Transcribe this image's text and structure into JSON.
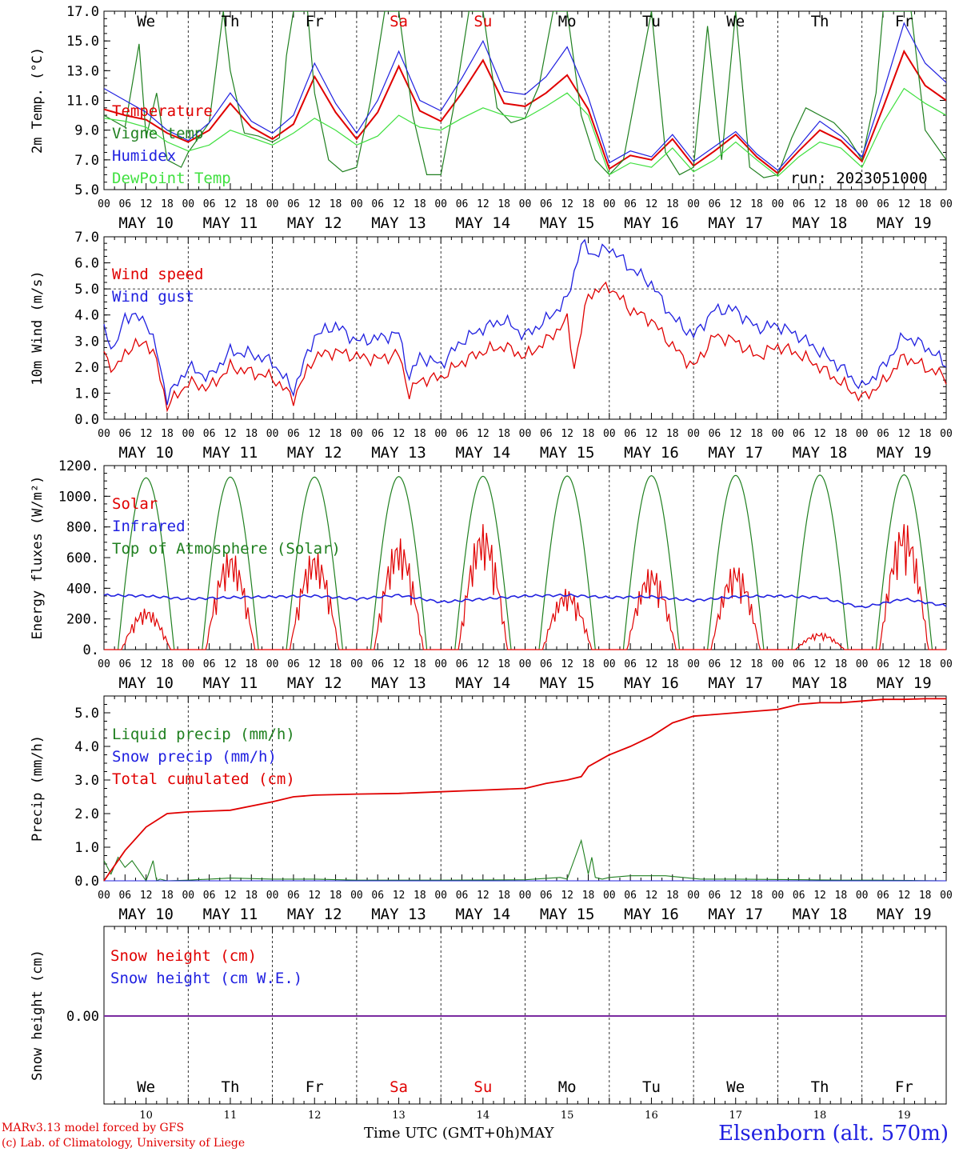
{
  "footer": {
    "model": "MARv3.13 model forced by GFS",
    "lab": "(c) Lab. of Climatology, University of Liege",
    "time_label": "Time UTC (GMT+0h)",
    "month": "MAY",
    "station": "Elsenborn (alt. 570m)"
  },
  "days": {
    "weekdays": [
      "We",
      "Th",
      "Fr",
      "Sa",
      "Su",
      "Mo",
      "Tu",
      "We",
      "Th",
      "Fr"
    ],
    "weekday_colors": [
      "#000000",
      "#000000",
      "#000000",
      "#e00000",
      "#e00000",
      "#000000",
      "#000000",
      "#000000",
      "#000000",
      "#000000"
    ],
    "dates": [
      "MAY 10",
      "MAY 11",
      "MAY 12",
      "MAY 13",
      "MAY 14",
      "MAY 15",
      "MAY 16",
      "MAY 17",
      "MAY 18",
      "MAY 19"
    ],
    "day_numbers": [
      "10",
      "11",
      "12",
      "13",
      "14",
      "15",
      "16",
      "17",
      "18",
      "19"
    ],
    "hour_ticks": [
      "00",
      "06",
      "12",
      "18"
    ],
    "hour_tick_end": "00"
  },
  "chart_data": [
    {
      "type": "line",
      "ylabel": "2m Temp. (°C)",
      "ylim": [
        5.0,
        17.0
      ],
      "yticks": [
        "5.0",
        "7.0",
        "9.0",
        "11.0",
        "13.0",
        "15.0",
        "17.0"
      ],
      "annotation": "run: 2023051000",
      "x_unit": "hours since MAY 10 00 UTC",
      "series": [
        {
          "name": "Temperature",
          "color": "#e00000",
          "x": [
            0,
            6,
            12,
            18,
            24,
            30,
            36,
            42,
            48,
            54,
            60,
            66,
            72,
            78,
            84,
            90,
            96,
            102,
            108,
            114,
            120,
            126,
            132,
            138,
            144,
            150,
            156,
            162,
            168,
            174,
            180,
            186,
            192,
            198,
            204,
            210,
            216,
            222,
            228,
            234,
            240
          ],
          "values": [
            10.4,
            10.0,
            9.7,
            8.8,
            8.2,
            9.0,
            10.8,
            9.2,
            8.4,
            9.4,
            12.6,
            10.2,
            8.4,
            10.2,
            13.3,
            10.3,
            9.6,
            11.5,
            13.7,
            10.8,
            10.6,
            11.5,
            12.7,
            10.4,
            6.4,
            7.3,
            7.0,
            8.4,
            6.6,
            7.6,
            8.7,
            7.2,
            6.1,
            7.6,
            9.0,
            8.3,
            6.9,
            10.5,
            14.3,
            12.0,
            11.0
          ]
        },
        {
          "name": "Vigne temp",
          "color": "#208020",
          "x": [
            0,
            6,
            10,
            12,
            15,
            18,
            22,
            24,
            30,
            34,
            36,
            40,
            44,
            48,
            50,
            52,
            54,
            58,
            60,
            64,
            68,
            72,
            76,
            80,
            84,
            88,
            92,
            96,
            100,
            104,
            108,
            112,
            116,
            120,
            124,
            128,
            132,
            136,
            140,
            144,
            148,
            152,
            156,
            160,
            164,
            168,
            172,
            176,
            180,
            184,
            188,
            192,
            196,
            200,
            204,
            208,
            212,
            216,
            220,
            222,
            226,
            230,
            234,
            240
          ],
          "values": [
            10.0,
            9.2,
            14.8,
            8.5,
            11.5,
            7.0,
            6.5,
            7.5,
            9.5,
            17.0,
            13.0,
            8.8,
            8.6,
            8.2,
            8.5,
            14.0,
            17.0,
            17.0,
            11.5,
            7.0,
            6.2,
            6.5,
            11.0,
            17.0,
            17.0,
            10.0,
            6.0,
            6.0,
            11.0,
            17.0,
            17.0,
            10.5,
            9.5,
            9.8,
            12.0,
            17.0,
            17.0,
            10.0,
            7.0,
            6.0,
            7.0,
            12.0,
            17.0,
            7.5,
            6.0,
            6.5,
            16.0,
            7.0,
            17.0,
            6.5,
            5.8,
            6.0,
            8.5,
            10.5,
            10.0,
            9.5,
            8.5,
            7.0,
            11.5,
            17.0,
            17.0,
            17.0,
            9.0,
            7.0
          ]
        },
        {
          "name": "Humidex",
          "color": "#2020e0",
          "x": [
            0,
            6,
            12,
            18,
            24,
            30,
            36,
            42,
            48,
            54,
            60,
            66,
            72,
            78,
            84,
            90,
            96,
            102,
            108,
            114,
            120,
            126,
            132,
            138,
            144,
            150,
            156,
            162,
            168,
            174,
            180,
            186,
            192,
            198,
            204,
            210,
            216,
            222,
            228,
            234,
            240
          ],
          "values": [
            11.8,
            11.0,
            10.2,
            9.0,
            8.3,
            9.5,
            11.5,
            9.6,
            8.8,
            10.0,
            13.5,
            10.8,
            8.8,
            11.0,
            14.3,
            11.0,
            10.3,
            12.5,
            15.0,
            11.6,
            11.4,
            12.6,
            14.6,
            11.2,
            6.8,
            7.6,
            7.2,
            8.7,
            6.9,
            7.9,
            8.9,
            7.4,
            6.3,
            7.9,
            9.6,
            8.6,
            7.2,
            11.5,
            16.2,
            13.5,
            12.2
          ]
        },
        {
          "name": "DewPoint Temp",
          "color": "#40e040",
          "x": [
            0,
            6,
            12,
            18,
            24,
            30,
            36,
            42,
            48,
            54,
            60,
            66,
            72,
            78,
            84,
            90,
            96,
            102,
            108,
            114,
            120,
            126,
            132,
            138,
            144,
            150,
            156,
            162,
            168,
            174,
            180,
            186,
            192,
            198,
            204,
            210,
            216,
            222,
            228,
            234,
            240
          ],
          "values": [
            9.8,
            9.6,
            9.2,
            8.2,
            7.6,
            8.0,
            9.0,
            8.5,
            8.0,
            8.8,
            9.8,
            9.0,
            8.0,
            8.6,
            10.0,
            9.2,
            9.0,
            9.8,
            10.5,
            10.0,
            9.8,
            10.6,
            11.5,
            10.0,
            6.0,
            6.8,
            6.5,
            7.8,
            6.2,
            7.0,
            8.2,
            7.0,
            5.9,
            7.2,
            8.2,
            7.8,
            6.5,
            9.5,
            11.8,
            10.8,
            10.0
          ]
        }
      ]
    },
    {
      "type": "line",
      "ylabel": "10m Wind (m/s)",
      "ylim": [
        0.0,
        7.0
      ],
      "yticks": [
        "0.0",
        "1.0",
        "2.0",
        "3.0",
        "4.0",
        "5.0",
        "6.0",
        "7.0"
      ],
      "series": [
        {
          "name": "Wind speed",
          "color": "#e00000",
          "x": [
            0,
            3,
            6,
            12,
            15,
            18,
            24,
            30,
            36,
            42,
            48,
            54,
            60,
            66,
            72,
            78,
            84,
            87,
            90,
            96,
            102,
            108,
            114,
            120,
            126,
            132,
            134,
            138,
            144,
            150,
            156,
            162,
            168,
            174,
            180,
            186,
            192,
            198,
            204,
            210,
            216,
            222,
            228,
            234,
            240
          ],
          "values": [
            2.6,
            1.8,
            2.6,
            3.0,
            2.2,
            0.5,
            1.4,
            1.2,
            2.0,
            1.8,
            1.6,
            0.8,
            2.4,
            2.6,
            2.4,
            2.3,
            2.5,
            1.0,
            1.5,
            1.6,
            2.2,
            2.6,
            2.8,
            2.4,
            3.0,
            3.8,
            2.0,
            4.8,
            5.1,
            4.2,
            3.8,
            2.8,
            2.0,
            3.2,
            3.0,
            2.4,
            2.8,
            2.5,
            2.0,
            1.4,
            0.8,
            1.4,
            2.4,
            2.0,
            1.6
          ]
        },
        {
          "name": "Wind gust",
          "color": "#2020e0",
          "x": [
            0,
            3,
            6,
            12,
            15,
            18,
            24,
            30,
            36,
            42,
            48,
            54,
            60,
            66,
            72,
            78,
            84,
            87,
            90,
            96,
            102,
            108,
            114,
            120,
            126,
            132,
            136,
            140,
            144,
            150,
            156,
            162,
            168,
            174,
            180,
            186,
            192,
            198,
            204,
            210,
            216,
            222,
            228,
            234,
            240
          ],
          "values": [
            3.5,
            2.6,
            4.0,
            3.8,
            2.6,
            0.8,
            2.0,
            1.6,
            2.6,
            2.5,
            2.2,
            1.1,
            3.2,
            3.6,
            3.0,
            3.1,
            3.3,
            1.6,
            2.4,
            2.1,
            3.0,
            3.5,
            3.8,
            3.2,
            3.8,
            4.6,
            6.7,
            6.3,
            6.6,
            5.8,
            5.2,
            3.9,
            3.2,
            4.2,
            4.2,
            3.5,
            3.6,
            3.2,
            2.6,
            2.0,
            1.2,
            2.0,
            3.2,
            2.8,
            2.1
          ]
        }
      ]
    },
    {
      "type": "line",
      "ylabel": "Energy fluxes (W/m²)",
      "ylim": [
        0,
        1200
      ],
      "yticks": [
        "0.",
        "200.",
        "400.",
        "600.",
        "800.",
        "1000.",
        "1200."
      ],
      "series": [
        {
          "name": "Solar",
          "color": "#e00000",
          "peak_hour": 12,
          "daily_peaks": [
            270,
            650,
            650,
            730,
            820,
            400,
            540,
            560,
            110,
            840
          ]
        },
        {
          "name": "Infrared",
          "color": "#2020e0",
          "x": [
            0,
            12,
            24,
            36,
            48,
            60,
            72,
            84,
            96,
            108,
            120,
            132,
            144,
            156,
            168,
            180,
            192,
            204,
            216,
            228,
            240
          ],
          "values": [
            355,
            350,
            330,
            340,
            345,
            350,
            330,
            355,
            310,
            330,
            350,
            355,
            340,
            345,
            320,
            345,
            350,
            340,
            275,
            330,
            285
          ]
        },
        {
          "name": "Top of Atmosphere (Solar)",
          "color": "#208020",
          "sunrise_hour": 4,
          "sunset_hour": 20,
          "daily_peaks": [
            1120,
            1125,
            1125,
            1128,
            1130,
            1132,
            1134,
            1136,
            1138,
            1140
          ]
        }
      ]
    },
    {
      "type": "line",
      "ylabel": "Precip (mm/h)",
      "ylim": [
        0.0,
        5.5
      ],
      "yticks": [
        "0.0",
        "1.0",
        "2.0",
        "3.0",
        "4.0",
        "5.0"
      ],
      "series": [
        {
          "name": "Liquid precip (mm/h)",
          "color": "#208020",
          "x": [
            0,
            2,
            4,
            6,
            8,
            10,
            12,
            14,
            15,
            16,
            18,
            24,
            36,
            48,
            60,
            72,
            96,
            120,
            130,
            132,
            136,
            138,
            139,
            140,
            142,
            144,
            150,
            160,
            170,
            180,
            190,
            200,
            210,
            220,
            230,
            240
          ],
          "values": [
            0.6,
            0.2,
            0.7,
            0.4,
            0.6,
            0.3,
            0.0,
            0.6,
            0.0,
            0.05,
            0.0,
            0.02,
            0.08,
            0.05,
            0.05,
            0.02,
            0.02,
            0.03,
            0.1,
            0.05,
            1.2,
            0.2,
            0.7,
            0.1,
            0.05,
            0.1,
            0.15,
            0.15,
            0.05,
            0.05,
            0.04,
            0.03,
            0.02,
            0.02,
            0.01,
            0.0
          ]
        },
        {
          "name": "Snow precip (mm/h)",
          "color": "#2020e0",
          "x": [
            0,
            240
          ],
          "values": [
            0.0,
            0.0
          ]
        },
        {
          "name": "Total cumulated (cm)",
          "color": "#e00000",
          "x": [
            0,
            6,
            12,
            18,
            24,
            36,
            48,
            54,
            60,
            72,
            84,
            96,
            108,
            120,
            126,
            132,
            136,
            138,
            144,
            150,
            156,
            162,
            168,
            174,
            180,
            186,
            192,
            198,
            204,
            210,
            216,
            222,
            228,
            234,
            240
          ],
          "values": [
            0.0,
            0.9,
            1.6,
            2.0,
            2.05,
            2.1,
            2.35,
            2.5,
            2.55,
            2.58,
            2.6,
            2.65,
            2.7,
            2.75,
            2.9,
            3.0,
            3.1,
            3.4,
            3.75,
            4.0,
            4.3,
            4.7,
            4.9,
            4.95,
            5.0,
            5.05,
            5.1,
            5.25,
            5.3,
            5.3,
            5.35,
            5.4,
            5.4,
            5.42,
            5.42
          ]
        }
      ]
    },
    {
      "type": "line",
      "ylabel": "Snow height (cm)",
      "yticks": [
        "0.00"
      ],
      "series": [
        {
          "name": "Snow height (cm)",
          "color": "#e00000",
          "x": [
            0,
            240
          ],
          "values": [
            0.0,
            0.0
          ]
        },
        {
          "name": "Snow height (cm W.E.)",
          "color": "#2020e0",
          "x": [
            0,
            240
          ],
          "values": [
            0.0,
            0.0
          ]
        }
      ]
    }
  ]
}
